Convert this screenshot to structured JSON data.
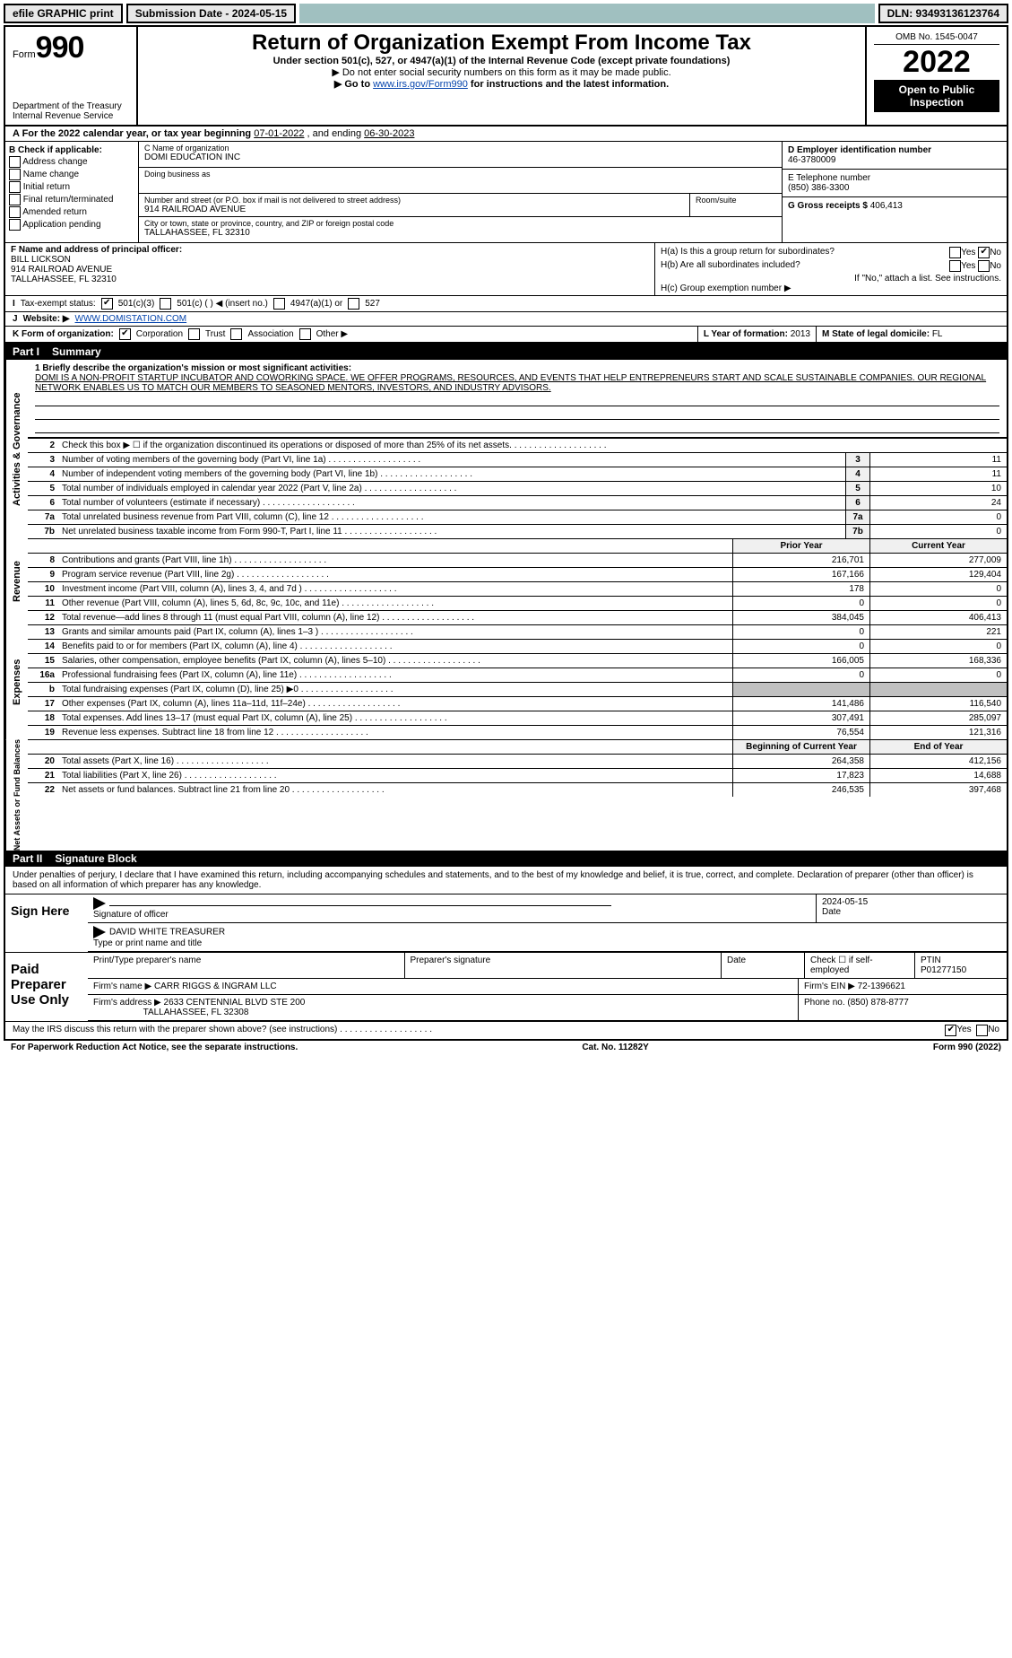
{
  "topbar": {
    "efile": "efile GRAPHIC print",
    "submission_label": "Submission Date - 2024-05-15",
    "dln": "DLN: 93493136123764"
  },
  "header": {
    "form_word": "Form",
    "form_number": "990",
    "dept": "Department of the Treasury",
    "irs": "Internal Revenue Service",
    "title": "Return of Organization Exempt From Income Tax",
    "subtitle": "Under section 501(c), 527, or 4947(a)(1) of the Internal Revenue Code (except private foundations)",
    "note1": "▶ Do not enter social security numbers on this form as it may be made public.",
    "note2_pre": "▶ Go to ",
    "note2_link": "www.irs.gov/Form990",
    "note2_post": " for instructions and the latest information.",
    "omb": "OMB No. 1545-0047",
    "year": "2022",
    "open": "Open to Public Inspection"
  },
  "lineA": {
    "prefix": "A For the 2022 calendar year, or tax year beginning ",
    "begin": "07-01-2022",
    "mid": " , and ending ",
    "end": "06-30-2023"
  },
  "b": {
    "label": "B Check if applicable:",
    "items": [
      "Address change",
      "Name change",
      "Initial return",
      "Final return/terminated",
      "Amended return",
      "Application pending"
    ]
  },
  "c": {
    "name_lbl": "C Name of organization",
    "name": "DOMI EDUCATION INC",
    "dba_lbl": "Doing business as",
    "dba": "",
    "addr_lbl": "Number and street (or P.O. box if mail is not delivered to street address)",
    "room_lbl": "Room/suite",
    "addr": "914 RAILROAD AVENUE",
    "city_lbl": "City or town, state or province, country, and ZIP or foreign postal code",
    "city": "TALLAHASSEE, FL  32310"
  },
  "d": {
    "lbl": "D Employer identification number",
    "val": "46-3780009"
  },
  "e": {
    "lbl": "E Telephone number",
    "val": "(850) 386-3300"
  },
  "g": {
    "lbl": "G Gross receipts $",
    "val": "406,413"
  },
  "f": {
    "lbl": "F  Name and address of principal officer:",
    "name": "BILL LICKSON",
    "addr1": "914 RAILROAD AVENUE",
    "addr2": "TALLAHASSEE, FL  32310"
  },
  "h": {
    "a": "H(a)  Is this a group return for subordinates?",
    "b": "H(b)  Are all subordinates included?",
    "b_note": "If \"No,\" attach a list. See instructions.",
    "c": "H(c)  Group exemption number ▶",
    "yes": "Yes",
    "no": "No"
  },
  "i": {
    "lbl": "Tax-exempt status:",
    "opts": [
      "501(c)(3)",
      "501(c) (  ) ◀ (insert no.)",
      "4947(a)(1) or",
      "527"
    ]
  },
  "j": {
    "lbl": "Website: ▶",
    "val": "WWW.DOMISTATION.COM"
  },
  "k": {
    "lbl": "K Form of organization:",
    "opts": [
      "Corporation",
      "Trust",
      "Association",
      "Other ▶"
    ]
  },
  "l": {
    "lbl": "L Year of formation:",
    "val": "2013"
  },
  "m": {
    "lbl": "M State of legal domicile:",
    "val": "FL"
  },
  "partI": {
    "num": "Part I",
    "title": "Summary"
  },
  "mission": {
    "q": "1  Briefly describe the organization's mission or most significant activities:",
    "text": "DOMI IS A NON-PROFIT STARTUP INCUBATOR AND COWORKING SPACE. WE OFFER PROGRAMS, RESOURCES, AND EVENTS THAT HELP ENTREPRENEURS START AND SCALE SUSTAINABLE COMPANIES. OUR REGIONAL NETWORK ENABLES US TO MATCH OUR MEMBERS TO SEASONED MENTORS, INVESTORS, AND INDUSTRY ADVISORS."
  },
  "gov_side": "Activities & Governance",
  "rev_side": "Revenue",
  "exp_side": "Expenses",
  "nab_side": "Net Assets or Fund Balances",
  "gov_lines": [
    {
      "n": "2",
      "t": "Check this box ▶ ☐  if the organization discontinued its operations or disposed of more than 25% of its net assets."
    },
    {
      "n": "3",
      "t": "Number of voting members of the governing body (Part VI, line 1a)",
      "box": "3",
      "v": "11"
    },
    {
      "n": "4",
      "t": "Number of independent voting members of the governing body (Part VI, line 1b)",
      "box": "4",
      "v": "11"
    },
    {
      "n": "5",
      "t": "Total number of individuals employed in calendar year 2022 (Part V, line 2a)",
      "box": "5",
      "v": "10"
    },
    {
      "n": "6",
      "t": "Total number of volunteers (estimate if necessary)",
      "box": "6",
      "v": "24"
    },
    {
      "n": "7a",
      "t": "Total unrelated business revenue from Part VIII, column (C), line 12",
      "box": "7a",
      "v": "0"
    },
    {
      "n": "7b",
      "t": "Net unrelated business taxable income from Form 990-T, Part I, line 11",
      "box": "7b",
      "v": "0"
    }
  ],
  "rev_hdr": {
    "py": "Prior Year",
    "cy": "Current Year"
  },
  "rev_lines": [
    {
      "n": "8",
      "t": "Contributions and grants (Part VIII, line 1h)",
      "py": "216,701",
      "cy": "277,009"
    },
    {
      "n": "9",
      "t": "Program service revenue (Part VIII, line 2g)",
      "py": "167,166",
      "cy": "129,404"
    },
    {
      "n": "10",
      "t": "Investment income (Part VIII, column (A), lines 3, 4, and 7d )",
      "py": "178",
      "cy": "0"
    },
    {
      "n": "11",
      "t": "Other revenue (Part VIII, column (A), lines 5, 6d, 8c, 9c, 10c, and 11e)",
      "py": "0",
      "cy": "0"
    },
    {
      "n": "12",
      "t": "Total revenue—add lines 8 through 11 (must equal Part VIII, column (A), line 12)",
      "py": "384,045",
      "cy": "406,413"
    }
  ],
  "exp_lines": [
    {
      "n": "13",
      "t": "Grants and similar amounts paid (Part IX, column (A), lines 1–3 )",
      "py": "0",
      "cy": "221"
    },
    {
      "n": "14",
      "t": "Benefits paid to or for members (Part IX, column (A), line 4)",
      "py": "0",
      "cy": "0"
    },
    {
      "n": "15",
      "t": "Salaries, other compensation, employee benefits (Part IX, column (A), lines 5–10)",
      "py": "166,005",
      "cy": "168,336"
    },
    {
      "n": "16a",
      "t": "Professional fundraising fees (Part IX, column (A), line 11e)",
      "py": "0",
      "cy": "0"
    },
    {
      "n": "b",
      "t": "Total fundraising expenses (Part IX, column (D), line 25) ▶0",
      "py": "",
      "cy": "",
      "shade": true
    },
    {
      "n": "17",
      "t": "Other expenses (Part IX, column (A), lines 11a–11d, 11f–24e)",
      "py": "141,486",
      "cy": "116,540"
    },
    {
      "n": "18",
      "t": "Total expenses. Add lines 13–17 (must equal Part IX, column (A), line 25)",
      "py": "307,491",
      "cy": "285,097"
    },
    {
      "n": "19",
      "t": "Revenue less expenses. Subtract line 18 from line 12",
      "py": "76,554",
      "cy": "121,316"
    }
  ],
  "nab_hdr": {
    "py": "Beginning of Current Year",
    "cy": "End of Year"
  },
  "nab_lines": [
    {
      "n": "20",
      "t": "Total assets (Part X, line 16)",
      "py": "264,358",
      "cy": "412,156"
    },
    {
      "n": "21",
      "t": "Total liabilities (Part X, line 26)",
      "py": "17,823",
      "cy": "14,688"
    },
    {
      "n": "22",
      "t": "Net assets or fund balances. Subtract line 21 from line 20",
      "py": "246,535",
      "cy": "397,468"
    }
  ],
  "partII": {
    "num": "Part II",
    "title": "Signature Block"
  },
  "decl": "Under penalties of perjury, I declare that I have examined this return, including accompanying schedules and statements, and to the best of my knowledge and belief, it is true, correct, and complete. Declaration of preparer (other than officer) is based on all information of which preparer has any knowledge.",
  "sign": {
    "label": "Sign Here",
    "sig_lbl": "Signature of officer",
    "date_lbl": "Date",
    "date": "2024-05-15",
    "name": "DAVID WHITE  TREASURER",
    "name_lbl": "Type or print name and title"
  },
  "prep": {
    "label": "Paid Preparer Use Only",
    "h1": "Print/Type preparer's name",
    "h2": "Preparer's signature",
    "h3": "Date",
    "h4": "Check ☐ if self-employed",
    "h5": "PTIN",
    "ptin": "P01277150",
    "firm_lbl": "Firm's name  ▶",
    "firm": "CARR RIGGS & INGRAM LLC",
    "ein_lbl": "Firm's EIN ▶",
    "ein": "72-1396621",
    "addr_lbl": "Firm's address ▶",
    "addr1": "2633 CENTENNIAL BLVD STE 200",
    "addr2": "TALLAHASSEE, FL  32308",
    "phone_lbl": "Phone no.",
    "phone": "(850) 878-8777"
  },
  "discuss": {
    "q": "May the IRS discuss this return with the preparer shown above? (see instructions)",
    "yes": "Yes",
    "no": "No"
  },
  "footer": {
    "left": "For Paperwork Reduction Act Notice, see the separate instructions.",
    "mid": "Cat. No. 11282Y",
    "right": "Form 990 (2022)"
  }
}
